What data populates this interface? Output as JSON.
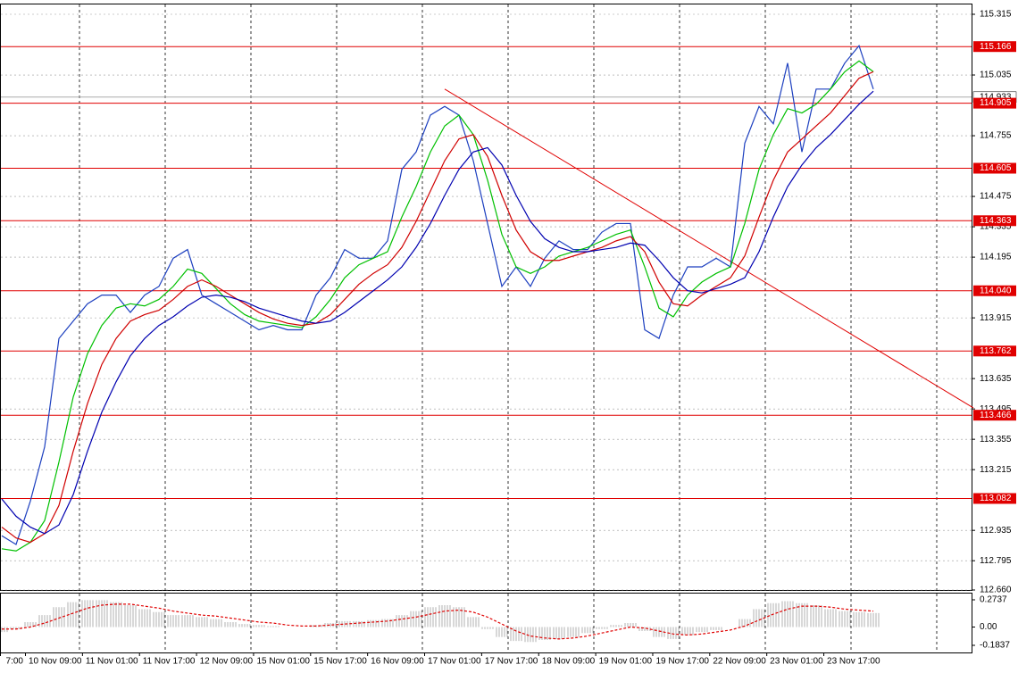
{
  "chart_data": [
    {
      "type": "line",
      "ylim": [
        112.66,
        115.315
      ],
      "yticks": [
        115.315,
        115.035,
        114.755,
        114.475,
        114.335,
        114.195,
        113.915,
        113.635,
        113.495,
        113.355,
        113.215,
        112.935,
        112.795,
        {
          "value": 112.66,
          "label": "112.660"
        }
      ],
      "grid": true,
      "x_tick_labels": [
        "7:00",
        "10 Nov 09:00",
        "11 Nov 01:00",
        "11 Nov 17:00",
        "12 Nov 09:00",
        "15 Nov 01:00",
        "15 Nov 17:00",
        "16 Nov 09:00",
        "17 Nov 01:00",
        "17 Nov 17:00",
        "18 Nov 09:00",
        "19 Nov 01:00",
        "19 Nov 17:00",
        "22 Nov 09:00",
        "23 Nov 01:00",
        "23 Nov 17:00"
      ],
      "series": [
        {
          "color": "#1c3fbf",
          "values": [
            112.91,
            112.87,
            113.07,
            113.32,
            113.82,
            113.9,
            113.98,
            114.02,
            114.02,
            113.94,
            114.02,
            114.06,
            114.19,
            114.23,
            114.02,
            113.98,
            113.94,
            113.9,
            113.86,
            113.88,
            113.86,
            113.86,
            114.02,
            114.1,
            114.23,
            114.19,
            114.19,
            114.27,
            114.6,
            114.68,
            114.85,
            114.89,
            114.85,
            114.64,
            114.35,
            114.06,
            114.15,
            114.06,
            114.19,
            114.27,
            114.23,
            114.23,
            114.31,
            114.35,
            114.35,
            113.86,
            113.82,
            114.02,
            114.15,
            114.15,
            114.19,
            114.15,
            114.72,
            114.89,
            114.81,
            115.09,
            114.68,
            114.97,
            114.97,
            115.09,
            115.17,
            114.97
          ]
        },
        {
          "color": "#00c000",
          "values": [
            112.85,
            112.84,
            112.88,
            112.98,
            113.25,
            113.55,
            113.75,
            113.88,
            113.96,
            113.98,
            113.97,
            114.0,
            114.06,
            114.14,
            114.12,
            114.05,
            113.98,
            113.93,
            113.9,
            113.89,
            113.88,
            113.87,
            113.92,
            114.0,
            114.1,
            114.16,
            114.19,
            114.22,
            114.38,
            114.52,
            114.68,
            114.8,
            114.85,
            114.76,
            114.55,
            114.3,
            114.15,
            114.12,
            114.15,
            114.2,
            114.22,
            114.24,
            114.27,
            114.3,
            114.32,
            114.15,
            113.96,
            113.92,
            114.02,
            114.08,
            114.12,
            114.15,
            114.35,
            114.6,
            114.76,
            114.88,
            114.86,
            114.9,
            114.97,
            115.05,
            115.1,
            115.05
          ]
        },
        {
          "color": "#d00000",
          "values": [
            112.95,
            112.9,
            112.88,
            112.92,
            113.05,
            113.3,
            113.52,
            113.7,
            113.82,
            113.9,
            113.93,
            113.95,
            114.0,
            114.06,
            114.09,
            114.06,
            114.02,
            113.98,
            113.94,
            113.91,
            113.89,
            113.88,
            113.89,
            113.93,
            114.0,
            114.07,
            114.12,
            114.16,
            114.24,
            114.36,
            114.5,
            114.64,
            114.74,
            114.76,
            114.66,
            114.48,
            114.32,
            114.22,
            114.18,
            114.18,
            114.2,
            114.22,
            114.24,
            114.27,
            114.29,
            114.22,
            114.08,
            113.98,
            113.97,
            114.02,
            114.06,
            114.1,
            114.2,
            114.38,
            114.55,
            114.68,
            114.74,
            114.8,
            114.86,
            114.94,
            115.02,
            115.05
          ]
        },
        {
          "color": "#0000b0",
          "values": [
            113.08,
            113.0,
            112.95,
            112.92,
            112.96,
            113.1,
            113.3,
            113.48,
            113.62,
            113.74,
            113.82,
            113.88,
            113.92,
            113.97,
            114.01,
            114.02,
            114.01,
            113.99,
            113.96,
            113.94,
            113.92,
            113.9,
            113.89,
            113.9,
            113.94,
            113.99,
            114.04,
            114.09,
            114.15,
            114.24,
            114.35,
            114.48,
            114.6,
            114.68,
            114.7,
            114.62,
            114.48,
            114.36,
            114.28,
            114.24,
            114.22,
            114.22,
            114.23,
            114.24,
            114.26,
            114.25,
            114.18,
            114.1,
            114.04,
            114.03,
            114.05,
            114.07,
            114.1,
            114.22,
            114.38,
            114.52,
            114.62,
            114.7,
            114.76,
            114.83,
            114.9,
            114.96
          ]
        }
      ],
      "levels": [
        115.166,
        114.905,
        114.605,
        114.363,
        {
          "value": 114.04,
          "label": "114.040"
        },
        113.762,
        113.466,
        113.082
      ],
      "level_color": "#e00000",
      "current_price": 114.933,
      "trendline": {
        "x": [
          31,
          68
        ],
        "values": [
          114.97,
          113.5
        ],
        "color": "#e00000"
      }
    },
    {
      "type": "bar",
      "ylim": [
        -0.1837,
        0.2737
      ],
      "yticks": [
        0.2737,
        {
          "value": 0,
          "label": "0.00"
        },
        -0.1837
      ],
      "color": "#b0b0b0",
      "values": [
        -0.05,
        -0.02,
        0.05,
        0.12,
        0.2,
        0.25,
        0.27,
        0.27,
        0.25,
        0.22,
        0.18,
        0.15,
        0.12,
        0.12,
        0.1,
        0.08,
        0.05,
        0.03,
        0.02,
        0.01,
        0.0,
        0.0,
        0.02,
        0.04,
        0.06,
        0.06,
        0.07,
        0.08,
        0.12,
        0.16,
        0.2,
        0.22,
        0.2,
        0.1,
        -0.02,
        -0.1,
        -0.14,
        -0.15,
        -0.13,
        -0.12,
        -0.1,
        -0.06,
        -0.02,
        0.02,
        0.04,
        -0.04,
        -0.1,
        -0.12,
        -0.08,
        -0.05,
        -0.03,
        0.0,
        0.08,
        0.18,
        0.24,
        0.26,
        0.24,
        0.22,
        0.18,
        0.16,
        0.15,
        0.14
      ],
      "series": [
        {
          "color": "#e00000",
          "values": [
            -0.02,
            -0.02,
            0.0,
            0.04,
            0.09,
            0.14,
            0.19,
            0.22,
            0.23,
            0.23,
            0.21,
            0.19,
            0.16,
            0.14,
            0.12,
            0.11,
            0.09,
            0.07,
            0.05,
            0.04,
            0.02,
            0.01,
            0.01,
            0.02,
            0.03,
            0.04,
            0.05,
            0.06,
            0.08,
            0.1,
            0.13,
            0.16,
            0.17,
            0.15,
            0.1,
            0.03,
            -0.04,
            -0.09,
            -0.11,
            -0.12,
            -0.11,
            -0.09,
            -0.06,
            -0.03,
            0.0,
            -0.01,
            -0.04,
            -0.07,
            -0.08,
            -0.07,
            -0.05,
            -0.03,
            0.01,
            0.07,
            0.13,
            0.18,
            0.21,
            0.21,
            0.2,
            0.18,
            0.17,
            0.16
          ]
        }
      ]
    }
  ]
}
